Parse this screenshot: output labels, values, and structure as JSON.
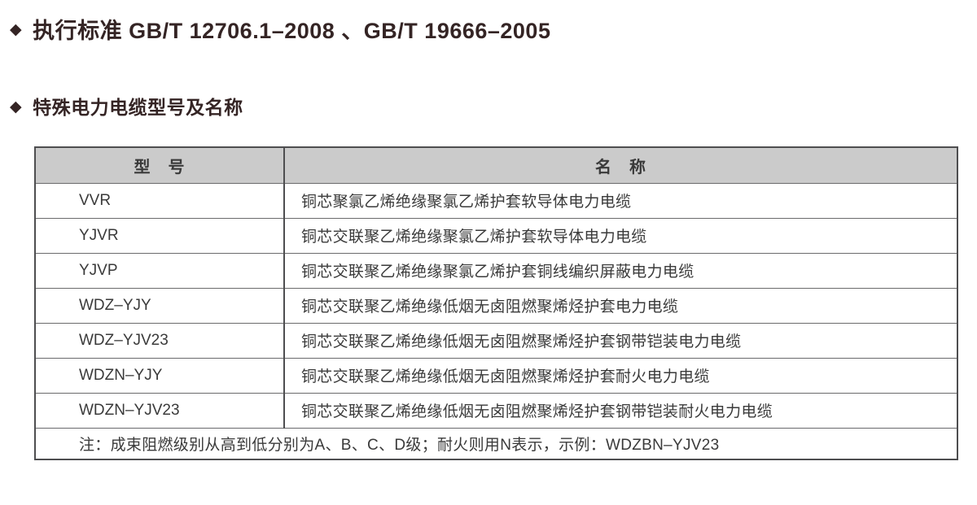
{
  "page": {
    "headings": [
      {
        "bullet": "◆",
        "text": "执行标准 GB/T 12706.1–2008 、GB/T 19666–2005"
      },
      {
        "bullet": "◆",
        "text": "特殊电力电缆型号及名称"
      }
    ]
  },
  "table": {
    "columns": {
      "model": "型　号",
      "name": "名　称"
    },
    "rows": [
      {
        "model": "VVR",
        "name": "铜芯聚氯乙烯绝缘聚氯乙烯护套软导体电力电缆"
      },
      {
        "model": "YJVR",
        "name": "铜芯交联聚乙烯绝缘聚氯乙烯护套软导体电力电缆"
      },
      {
        "model": "YJVP",
        "name": "铜芯交联聚乙烯绝缘聚氯乙烯护套铜线编织屏蔽电力电缆"
      },
      {
        "model": "WDZ–YJY",
        "name": "铜芯交联聚乙烯绝缘低烟无卤阻燃聚烯烃护套电力电缆"
      },
      {
        "model": "WDZ–YJV23",
        "name": "铜芯交联聚乙烯绝缘低烟无卤阻燃聚烯烃护套钢带铠装电力电缆"
      },
      {
        "model": "WDZN–YJY",
        "name": "铜芯交联聚乙烯绝缘低烟无卤阻燃聚烯烃护套耐火电力电缆"
      },
      {
        "model": "WDZN–YJV23",
        "name": "铜芯交联聚乙烯绝缘低烟无卤阻燃聚烯烃护套钢带铠装耐火电力电缆"
      }
    ],
    "note": "注：成束阻燃级别从高到低分别为A、B、C、D级；耐火则用N表示，示例：WDZBN–YJV23"
  },
  "colors": {
    "heading_text": "#342424",
    "table_border": "#4e4e50",
    "inner_line": "#6a6a6c",
    "header_bg": "#cbcbcb",
    "body_text": "#3a3a3a",
    "page_bg": "#ffffff"
  }
}
